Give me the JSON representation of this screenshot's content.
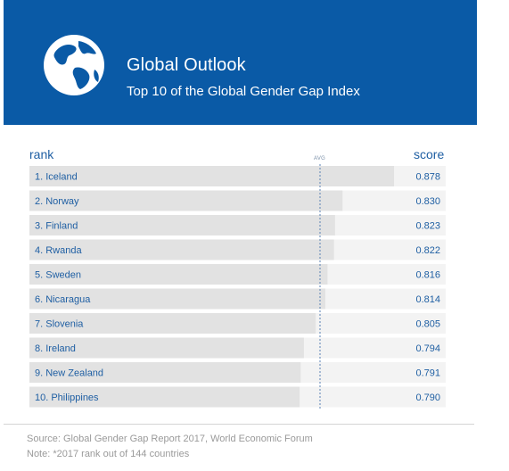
{
  "header": {
    "title": "Global Outlook",
    "subtitle": "Top 10 of the Global Gender Gap Index",
    "background": "#0a5aa6"
  },
  "chart_data": {
    "type": "bar",
    "orientation": "horizontal",
    "rank_label": "rank",
    "score_label": "score",
    "avg_label": "AVG",
    "categories": [
      "1. Iceland",
      "2. Norway",
      "3. Finland",
      "4. Rwanda",
      "5. Sweden",
      "6. Nicaragua",
      "7. Slovenia",
      "8. Ireland",
      "9. New Zealand",
      "10. Philippines"
    ],
    "values": [
      0.878,
      0.83,
      0.823,
      0.822,
      0.816,
      0.814,
      0.805,
      0.794,
      0.791,
      0.79
    ],
    "value_labels": [
      "0.878",
      "0.830",
      "0.823",
      "0.822",
      "0.816",
      "0.814",
      "0.805",
      "0.794",
      "0.791",
      "0.790"
    ],
    "bar_color": "#e2e2e2",
    "row_background": "#f3f3f3",
    "label_color": "#1f5fa3"
  },
  "footer": {
    "source": "Source: Global Gender Gap Report 2017, World Economic Forum",
    "note": "Note: *2017 rank out of 144 countries"
  }
}
